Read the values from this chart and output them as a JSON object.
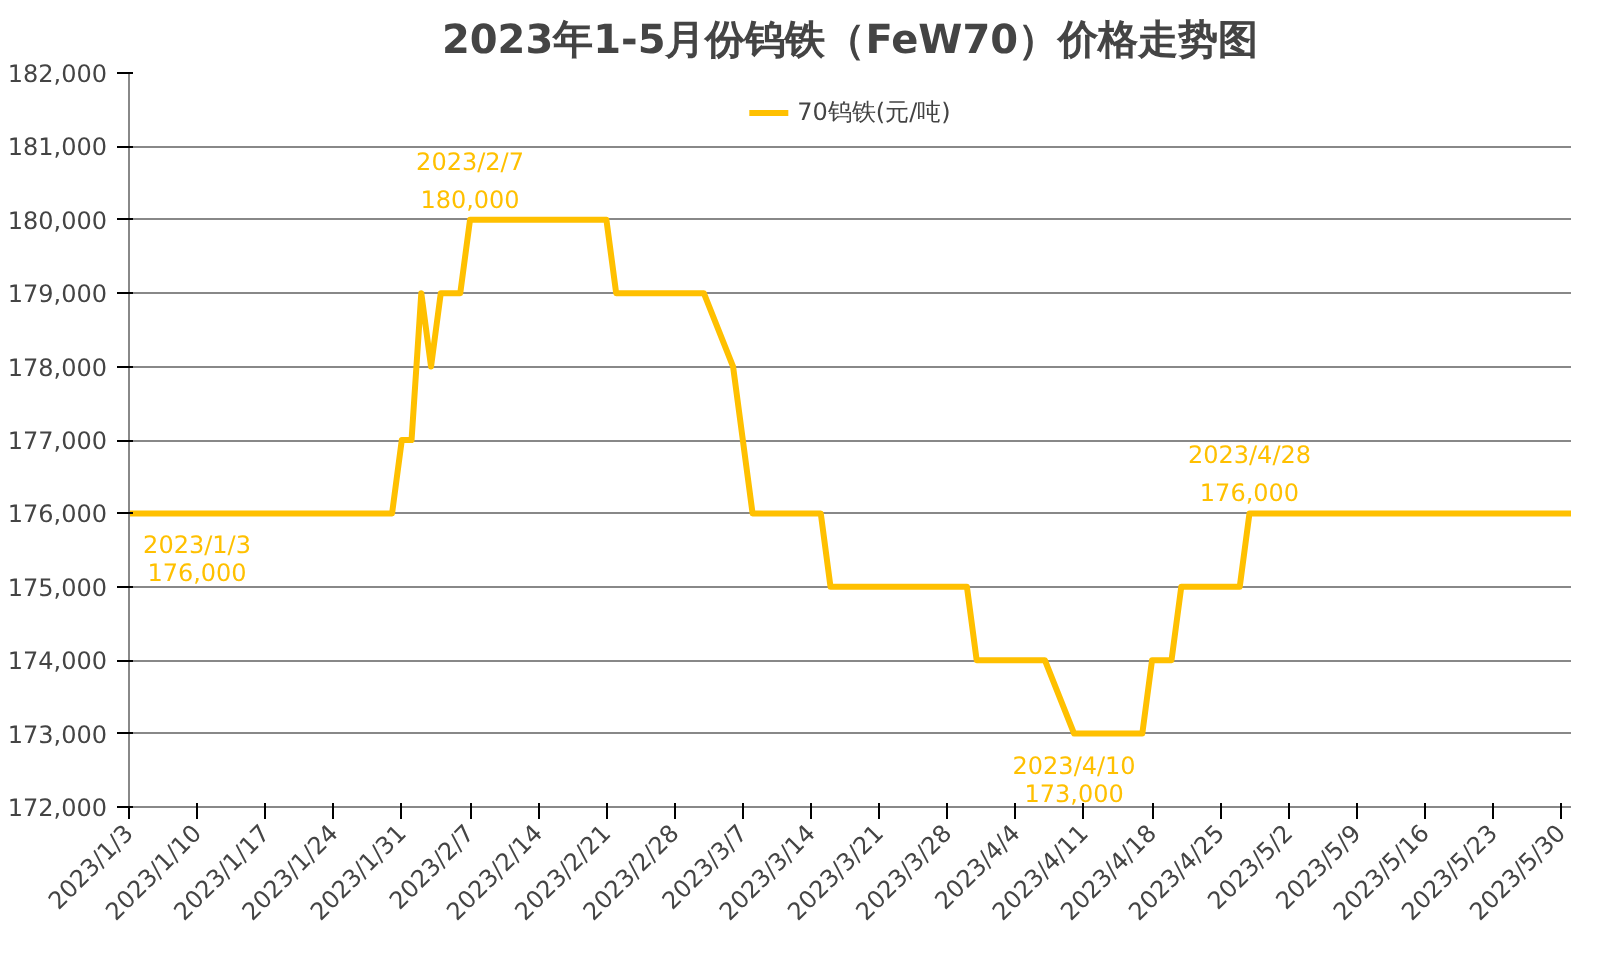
{
  "chart_data": {
    "type": "line",
    "title": "2023年1-5月份钨铁（FeW70）价格走势图",
    "x": [
      "2023-01-03",
      "2023-01-30",
      "2023-01-31",
      "2023-02-01",
      "2023-02-02",
      "2023-02-03",
      "2023-02-04",
      "2023-02-06",
      "2023-02-07",
      "2023-02-21",
      "2023-02-22",
      "2023-03-03",
      "2023-03-06",
      "2023-03-08",
      "2023-03-15",
      "2023-03-16",
      "2023-03-30",
      "2023-03-31",
      "2023-04-07",
      "2023-04-10",
      "2023-04-17",
      "2023-04-18",
      "2023-04-20",
      "2023-04-21",
      "2023-04-27",
      "2023-04-28",
      "2023-05-31"
    ],
    "series": [
      {
        "name": "70钨铁(元/吨)",
        "color": "#ffc000",
        "values": [
          176000,
          176000,
          177000,
          177000,
          179000,
          178000,
          179000,
          179000,
          180000,
          180000,
          179000,
          179000,
          178000,
          176000,
          176000,
          175000,
          175000,
          174000,
          174000,
          173000,
          173000,
          174000,
          174000,
          175000,
          175000,
          176000,
          176000
        ]
      }
    ],
    "xlim": [
      "2023-01-03",
      "2023-05-31"
    ],
    "xticks": [
      {
        "value": "2023-01-03",
        "label": "2023/1/3"
      },
      {
        "value": "2023-01-10",
        "label": "2023/1/10"
      },
      {
        "value": "2023-01-17",
        "label": "2023/1/17"
      },
      {
        "value": "2023-01-24",
        "label": "2023/1/24"
      },
      {
        "value": "2023-01-31",
        "label": "2023/1/31"
      },
      {
        "value": "2023-02-07",
        "label": "2023/2/7"
      },
      {
        "value": "2023-02-14",
        "label": "2023/2/14"
      },
      {
        "value": "2023-02-21",
        "label": "2023/2/21"
      },
      {
        "value": "2023-02-28",
        "label": "2023/2/28"
      },
      {
        "value": "2023-03-07",
        "label": "2023/3/7"
      },
      {
        "value": "2023-03-14",
        "label": "2023/3/14"
      },
      {
        "value": "2023-03-21",
        "label": "2023/3/21"
      },
      {
        "value": "2023-03-28",
        "label": "2023/3/28"
      },
      {
        "value": "2023-04-04",
        "label": "2023/4/4"
      },
      {
        "value": "2023-04-11",
        "label": "2023/4/11"
      },
      {
        "value": "2023-04-18",
        "label": "2023/4/18"
      },
      {
        "value": "2023-04-25",
        "label": "2023/4/25"
      },
      {
        "value": "2023-05-02",
        "label": "2023/5/2"
      },
      {
        "value": "2023-05-09",
        "label": "2023/5/9"
      },
      {
        "value": "2023-05-16",
        "label": "2023/5/16"
      },
      {
        "value": "2023-05-23",
        "label": "2023/5/23"
      },
      {
        "value": "2023-05-30",
        "label": "2023/5/30"
      }
    ],
    "ylim": [
      172000,
      182000
    ],
    "yticks": [
      {
        "value": 172000,
        "label": "172,000"
      },
      {
        "value": 173000,
        "label": "173,000"
      },
      {
        "value": 174000,
        "label": "174,000"
      },
      {
        "value": 175000,
        "label": "175,000"
      },
      {
        "value": 176000,
        "label": "176,000"
      },
      {
        "value": 177000,
        "label": "177,000"
      },
      {
        "value": 178000,
        "label": "178,000"
      },
      {
        "value": 179000,
        "label": "179,000"
      },
      {
        "value": 180000,
        "label": "180,000"
      },
      {
        "value": 181000,
        "label": "181,000"
      },
      {
        "value": 182000,
        "label": "182,000"
      }
    ],
    "annotations": [
      {
        "text": "2023/1/3\n176,000",
        "x": "2023-01-03",
        "y": 176000
      },
      {
        "text": "2023/2/7\n180,000",
        "x": "2023-02-07",
        "y": 180000
      },
      {
        "text": "2023/4/10\n173,000",
        "x": "2023-04-10",
        "y": 173000
      },
      {
        "text": "2023/4/28\n176,000",
        "x": "2023-04-28",
        "y": 176000
      }
    ],
    "grid": "y",
    "legend": "top",
    "marker": "none",
    "line_style": "solid"
  }
}
